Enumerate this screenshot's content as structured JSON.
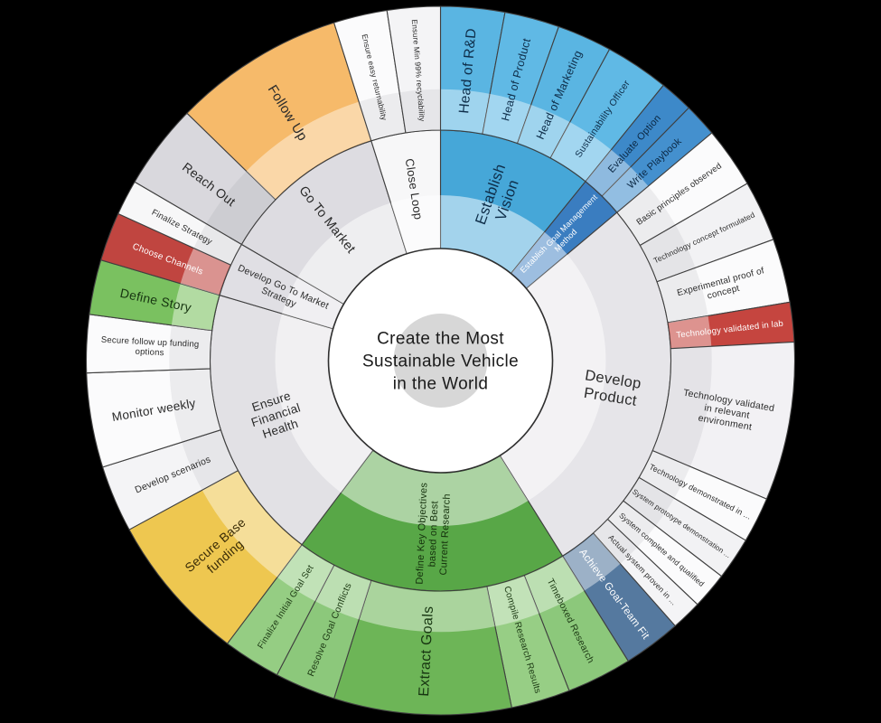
{
  "background": "#000000",
  "stroke_color": "#3f3f3f",
  "center": {
    "label": "Create the Most Sustainable Vehicle in the World",
    "lines": [
      "Create the Most",
      "Sustainable Vehicle",
      "in the World"
    ],
    "text_color": "#1b1b1b",
    "circle_color": "#ffffff",
    "inner_disc_color": "#d7d7d7",
    "font_size": 19
  },
  "chart_data": {
    "type": "sunburst",
    "title": "Create the Most Sustainable Vehicle in the World",
    "default_text": "#2b2b2b",
    "rings": {
      "r_center": 124,
      "r_mid": 255,
      "r_outer": 392
    },
    "angle_unit": "degrees clockwise from 12 o'clock",
    "nodes": [
      {
        "label": "Establish Vision",
        "lines": [
          "Establish",
          "Vision"
        ],
        "start": 0,
        "end": 39,
        "fill": "#46a7d8",
        "text": "#0e2d49",
        "size": 16.5,
        "children": [
          {
            "label": "Head of R&D",
            "start": 0,
            "end": 10.5,
            "fill": "#5ab5e2",
            "text": "#0e2d49",
            "size": 15.5
          },
          {
            "label": "Head of Product",
            "start": 10.5,
            "end": 19.5,
            "fill": "#60b9e5",
            "text": "#0e2d49",
            "size": 12.5
          },
          {
            "label": "Head of Marketing",
            "start": 19.5,
            "end": 28.5,
            "fill": "#5ab5e2",
            "text": "#0e2d49",
            "size": 12.5
          },
          {
            "label": "Sustainability Officer",
            "start": 28.5,
            "end": 39,
            "fill": "#60b9e5",
            "text": "#0e2d49",
            "size": 10.5
          }
        ]
      },
      {
        "label": "Establish Goal Management Method",
        "lines": [
          "Establish Goal Management",
          "Method"
        ],
        "start": 39,
        "end": 50,
        "fill": "#3a7dc0",
        "text": "#ffffff",
        "size": 9,
        "children": [
          {
            "label": "Evaluate Option",
            "start": 39,
            "end": 44.5,
            "fill": "#3d89c9",
            "text": "#0b2844",
            "size": 11
          },
          {
            "label": "Write Playbook",
            "start": 44.5,
            "end": 50,
            "fill": "#4490ce",
            "text": "#0b2844",
            "size": 11
          }
        ]
      },
      {
        "label": "Develop Product",
        "lines": [
          "Develop",
          "Product"
        ],
        "start": 50,
        "end": 148,
        "fill": "#e6e5e9",
        "text": "#2b2b2b",
        "size": 16.5,
        "children": [
          {
            "label": "Basic principles observed",
            "start": 50,
            "end": 60,
            "fill": "#fbfbfc",
            "size": 9.5
          },
          {
            "label": "Technology concept formulated",
            "start": 60,
            "end": 70,
            "fill": "#f2f2f4",
            "size": 8.5
          },
          {
            "label": "Experimental proof of concept",
            "lines": [
              "Experimental proof of",
              "concept"
            ],
            "start": 70,
            "end": 80.5,
            "fill": "#fbfbfc",
            "size": 10
          },
          {
            "label": "Technology validated in lab",
            "start": 80.5,
            "end": 87,
            "fill": "#c5453f",
            "text": "#ffffff",
            "size": 9.5
          },
          {
            "label": "Technology validated in relevant environment",
            "lines": [
              "Technology validated",
              "in relevant",
              "environment"
            ],
            "start": 87,
            "end": 113,
            "fill": "#f2f1f4",
            "size": 10.5
          },
          {
            "label": "Technology demonstrated in ...",
            "start": 113,
            "end": 120.5,
            "fill": "#fbfbfc",
            "size": 8.8
          },
          {
            "label": "System prototype demonstration ...",
            "start": 120.5,
            "end": 127.5,
            "fill": "#f2f2f4",
            "size": 8
          },
          {
            "label": "System complete and qualified",
            "start": 127.5,
            "end": 133.5,
            "fill": "#fbfbfc",
            "size": 8.5
          },
          {
            "label": "Actual system proven in ...",
            "start": 133.5,
            "end": 138.5,
            "fill": "#f4f4f6",
            "size": 8.5
          },
          {
            "label": "Achieve Goal-Team Fit",
            "start": 138.5,
            "end": 148,
            "fill": "#55799f",
            "text": "#ffffff",
            "size": 11.5
          }
        ]
      },
      {
        "label": "Define Key Objectives based on Best Current Research",
        "lines": [
          "Define Key Objectives",
          "based on Best",
          "Current Research"
        ],
        "start": 148,
        "end": 217,
        "fill": "#58a747",
        "text": "#14300c",
        "size": 11,
        "children": [
          {
            "label": "Timeboxed Research",
            "start": 148,
            "end": 158.7,
            "fill": "#8cc87b",
            "text": "#1d3a14",
            "size": 10.5
          },
          {
            "label": "Compile Research Results",
            "start": 158.7,
            "end": 168.4,
            "fill": "#97ce85",
            "text": "#1d3a14",
            "size": 10
          },
          {
            "label": "Extract Goals",
            "start": 168.4,
            "end": 197.5,
            "fill": "#6db557",
            "text": "#173511",
            "size": 16
          },
          {
            "label": "Resolve Goal Conflicts",
            "start": 197.5,
            "end": 207.5,
            "fill": "#8cc87b",
            "text": "#1d3a14",
            "size": 10.5
          },
          {
            "label": "Finalize Initial Goal Set",
            "start": 207.5,
            "end": 217,
            "fill": "#95cd83",
            "text": "#1d3a14",
            "size": 10
          }
        ]
      },
      {
        "label": "Ensure Financial Health",
        "lines": [
          "Ensure",
          "Financial",
          "Health"
        ],
        "start": 217,
        "end": 286.5,
        "fill": "#e2e1e5",
        "text": "#2b2b2b",
        "size": 13.5,
        "children": [
          {
            "label": "Secure Base funding",
            "lines": [
              "Secure Base",
              "funding"
            ],
            "start": 217,
            "end": 241.5,
            "fill": "#eec750",
            "text": "#3a2c07",
            "size": 14
          },
          {
            "label": "Develop scenarios",
            "start": 241.5,
            "end": 252.5,
            "fill": "#f4f4f6",
            "size": 10.5
          },
          {
            "label": "Monitor weekly",
            "start": 252.5,
            "end": 268,
            "fill": "#fbfbfc",
            "size": 13.5
          },
          {
            "label": "Secure follow up funding options",
            "lines": [
              "Secure follow up funding",
              "options"
            ],
            "start": 268,
            "end": 277.5,
            "fill": "#fbfbfc",
            "size": 9.5
          },
          {
            "label": "Define Story",
            "start": 277.5,
            "end": 286.5,
            "fill": "#7ac160",
            "text": "#173511",
            "size": 14
          }
        ]
      },
      {
        "label": "Develop Go To Market Strategy",
        "lines": [
          "Develop Go To Market",
          "Strategy"
        ],
        "start": 286.5,
        "end": 300.3,
        "fill": "#e0dfe4",
        "text": "#2b2b2b",
        "size": 10.5,
        "children": [
          {
            "label": "Choose Channels",
            "start": 286.5,
            "end": 294.5,
            "fill": "#c04540",
            "text": "#ffffff",
            "size": 10
          },
          {
            "label": "Finalize Strategy",
            "start": 294.5,
            "end": 300.3,
            "fill": "#f7f7f8",
            "size": 9.5
          }
        ]
      },
      {
        "label": "Go To Market",
        "start": 300.3,
        "end": 342.5,
        "fill": "#dddce1",
        "text": "#2b2b2b",
        "size": 14.5,
        "label_r": 200,
        "children": [
          {
            "label": "Reach Out",
            "start": 300.3,
            "end": 314.3,
            "fill": "#d9d8dd",
            "text": "#2b2b2b",
            "size": 14
          },
          {
            "label": "Follow Up",
            "start": 314.3,
            "end": 342.5,
            "fill": "#f6ba6a",
            "text": "#2b2b2b",
            "size": 15
          }
        ]
      },
      {
        "label": "Close Loop",
        "start": 342.5,
        "end": 360,
        "fill": "#f7f7f8",
        "text": "#2b2b2b",
        "size": 13,
        "children": [
          {
            "label": "Ensure easy returnability",
            "start": 342.5,
            "end": 351.3,
            "fill": "#fbfbfc",
            "size": 8.5
          },
          {
            "label": "Ensure Min 99% recyclability",
            "start": 351.3,
            "end": 360,
            "fill": "#f4f4f6",
            "size": 8.5
          }
        ]
      }
    ]
  }
}
